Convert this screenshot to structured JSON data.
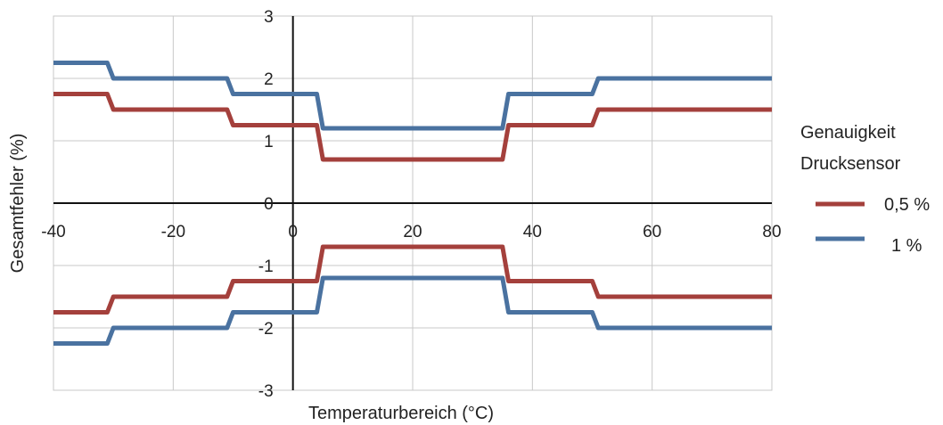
{
  "chart_data": {
    "type": "line",
    "title": "",
    "xlabel": "Temperaturbereich (°C)",
    "ylabel": "Gesamtfehler (%)",
    "xlim": [
      -40,
      80
    ],
    "ylim": [
      -3,
      3
    ],
    "x_ticks": [
      -40,
      -20,
      0,
      20,
      40,
      60,
      80
    ],
    "y_ticks": [
      -3,
      -2,
      -1,
      0,
      1,
      2,
      3
    ],
    "grid": true,
    "legend_title": [
      "Genauigkeit",
      "Drucksensor"
    ],
    "legend_position": "right",
    "series": [
      {
        "name": "0,5 %",
        "color": "#a4403c",
        "upper": {
          "x": [
            -40,
            -31,
            -30,
            -11,
            -10,
            4,
            5,
            35,
            36,
            50,
            51,
            80
          ],
          "y": [
            1.75,
            1.75,
            1.5,
            1.5,
            1.25,
            1.25,
            0.7,
            0.7,
            1.25,
            1.25,
            1.5,
            1.5
          ]
        },
        "lower": {
          "x": [
            -40,
            -31,
            -30,
            -11,
            -10,
            4,
            5,
            35,
            36,
            50,
            51,
            80
          ],
          "y": [
            -1.75,
            -1.75,
            -1.5,
            -1.5,
            -1.25,
            -1.25,
            -0.7,
            -0.7,
            -1.25,
            -1.25,
            -1.5,
            -1.5
          ]
        }
      },
      {
        "name": "1 %",
        "color": "#4a72a0",
        "upper": {
          "x": [
            -40,
            -31,
            -30,
            -11,
            -10,
            4,
            5,
            35,
            36,
            50,
            51,
            80
          ],
          "y": [
            2.25,
            2.25,
            2.0,
            2.0,
            1.75,
            1.75,
            1.2,
            1.2,
            1.75,
            1.75,
            2.0,
            2.0
          ]
        },
        "lower": {
          "x": [
            -40,
            -31,
            -30,
            -11,
            -10,
            4,
            5,
            35,
            36,
            50,
            51,
            80
          ],
          "y": [
            -2.25,
            -2.25,
            -2.0,
            -2.0,
            -1.75,
            -1.75,
            -1.2,
            -1.2,
            -1.75,
            -1.75,
            -2.0,
            -2.0
          ]
        }
      }
    ]
  }
}
